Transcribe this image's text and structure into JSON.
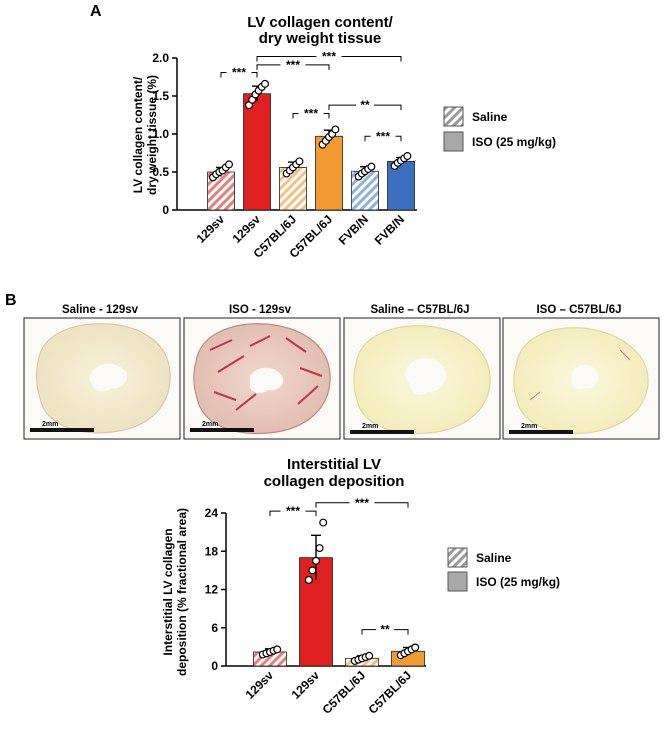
{
  "panel_labels": {
    "a": "A",
    "b": "B"
  },
  "colors": {
    "129sv": "#e02020",
    "C57BL/6J": "#f39a33",
    "FVB/N": "#3c6fc0",
    "legend_grey": "#a8a8a8"
  },
  "images": [
    {
      "title": "Saline - 129sv",
      "scale_label": "2mm"
    },
    {
      "title": "ISO - 129sv",
      "scale_label": "2mm"
    },
    {
      "title": "Saline – C57BL/6J",
      "scale_label": "2mm"
    },
    {
      "title": "ISO – C57BL/6J",
      "scale_label": "2mm"
    }
  ],
  "chart_data": [
    {
      "type": "bar",
      "title": [
        "LV collagen content/",
        "dry weight tissue"
      ],
      "ylabel": [
        "LV collagen content/",
        "dry weight tissue (%)"
      ],
      "ylim": [
        0,
        2.0
      ],
      "yticks": [
        "0",
        "0.5",
        "1.0",
        "1.5",
        "2.0"
      ],
      "categories": [
        "129sv",
        "129sv",
        "C57BL/6J",
        "C57BL/6J",
        "FVB/N",
        "FVB/N"
      ],
      "treatment": [
        "Saline",
        "ISO",
        "Saline",
        "ISO",
        "Saline",
        "ISO"
      ],
      "strain_color": [
        "129sv",
        "129sv",
        "C57BL/6J",
        "C57BL/6J",
        "FVB/N",
        "FVB/N"
      ],
      "values": [
        0.5,
        1.53,
        0.56,
        0.97,
        0.51,
        0.64
      ],
      "errors": [
        0.06,
        0.1,
        0.07,
        0.08,
        0.06,
        0.05
      ],
      "points": [
        [
          0.43,
          0.47,
          0.5,
          0.52,
          0.56,
          0.6
        ],
        [
          1.38,
          1.45,
          1.52,
          1.57,
          1.62,
          1.66
        ],
        [
          0.48,
          0.52,
          0.56,
          0.6,
          0.64
        ],
        [
          0.86,
          0.91,
          0.96,
          1.0,
          1.06
        ],
        [
          0.44,
          0.48,
          0.51,
          0.54,
          0.57
        ],
        [
          0.58,
          0.62,
          0.65,
          0.68,
          0.71
        ]
      ],
      "significance": [
        {
          "from": 0,
          "to": 1,
          "label": "***",
          "y": 1.81
        },
        {
          "from": 1,
          "to": 3,
          "label": "***",
          "y": 1.91
        },
        {
          "from": 1,
          "to": 5,
          "label": "***",
          "y": 2.02
        },
        {
          "from": 2,
          "to": 3,
          "label": "***",
          "y": 1.27
        },
        {
          "from": 3,
          "to": 5,
          "label": "**",
          "y": 1.38
        },
        {
          "from": 4,
          "to": 5,
          "label": "***",
          "y": 0.97
        }
      ],
      "legend": [
        {
          "label": "Saline",
          "pattern": "hatched"
        },
        {
          "label": "ISO (25 mg/kg)",
          "pattern": "solid"
        }
      ]
    },
    {
      "type": "bar",
      "title": [
        "Interstitial LV",
        "collagen deposition"
      ],
      "ylabel": [
        "Interstitial LV collagen",
        "deposition (% fractional area)"
      ],
      "ylim": [
        0,
        24
      ],
      "yticks": [
        "0",
        "6",
        "12",
        "18",
        "24"
      ],
      "categories": [
        "129sv",
        "129sv",
        "C57BL/6J",
        "C57BL/6J"
      ],
      "treatment": [
        "Saline",
        "ISO",
        "Saline",
        "ISO"
      ],
      "strain_color": [
        "129sv",
        "129sv",
        "C57BL/6J",
        "C57BL/6J"
      ],
      "values": [
        2.2,
        17.0,
        1.2,
        2.3
      ],
      "errors": [
        0.5,
        3.5,
        0.4,
        0.6
      ],
      "points": [
        [
          1.8,
          2.0,
          2.2,
          2.4,
          2.6
        ],
        [
          13.5,
          15.0,
          16.5,
          18.5,
          22.5
        ],
        [
          0.8,
          1.0,
          1.2,
          1.4,
          1.6
        ],
        [
          1.7,
          2.0,
          2.3,
          2.6,
          2.9
        ]
      ],
      "significance": [
        {
          "from": 0,
          "to": 1,
          "label": "***",
          "y": 24.3
        },
        {
          "from": 1,
          "to": 3,
          "label": "***",
          "y": 25.6
        },
        {
          "from": 2,
          "to": 3,
          "label": "**",
          "y": 5.7
        }
      ],
      "legend": [
        {
          "label": "Saline",
          "pattern": "hatched"
        },
        {
          "label": "ISO (25 mg/kg)",
          "pattern": "solid"
        }
      ]
    }
  ]
}
